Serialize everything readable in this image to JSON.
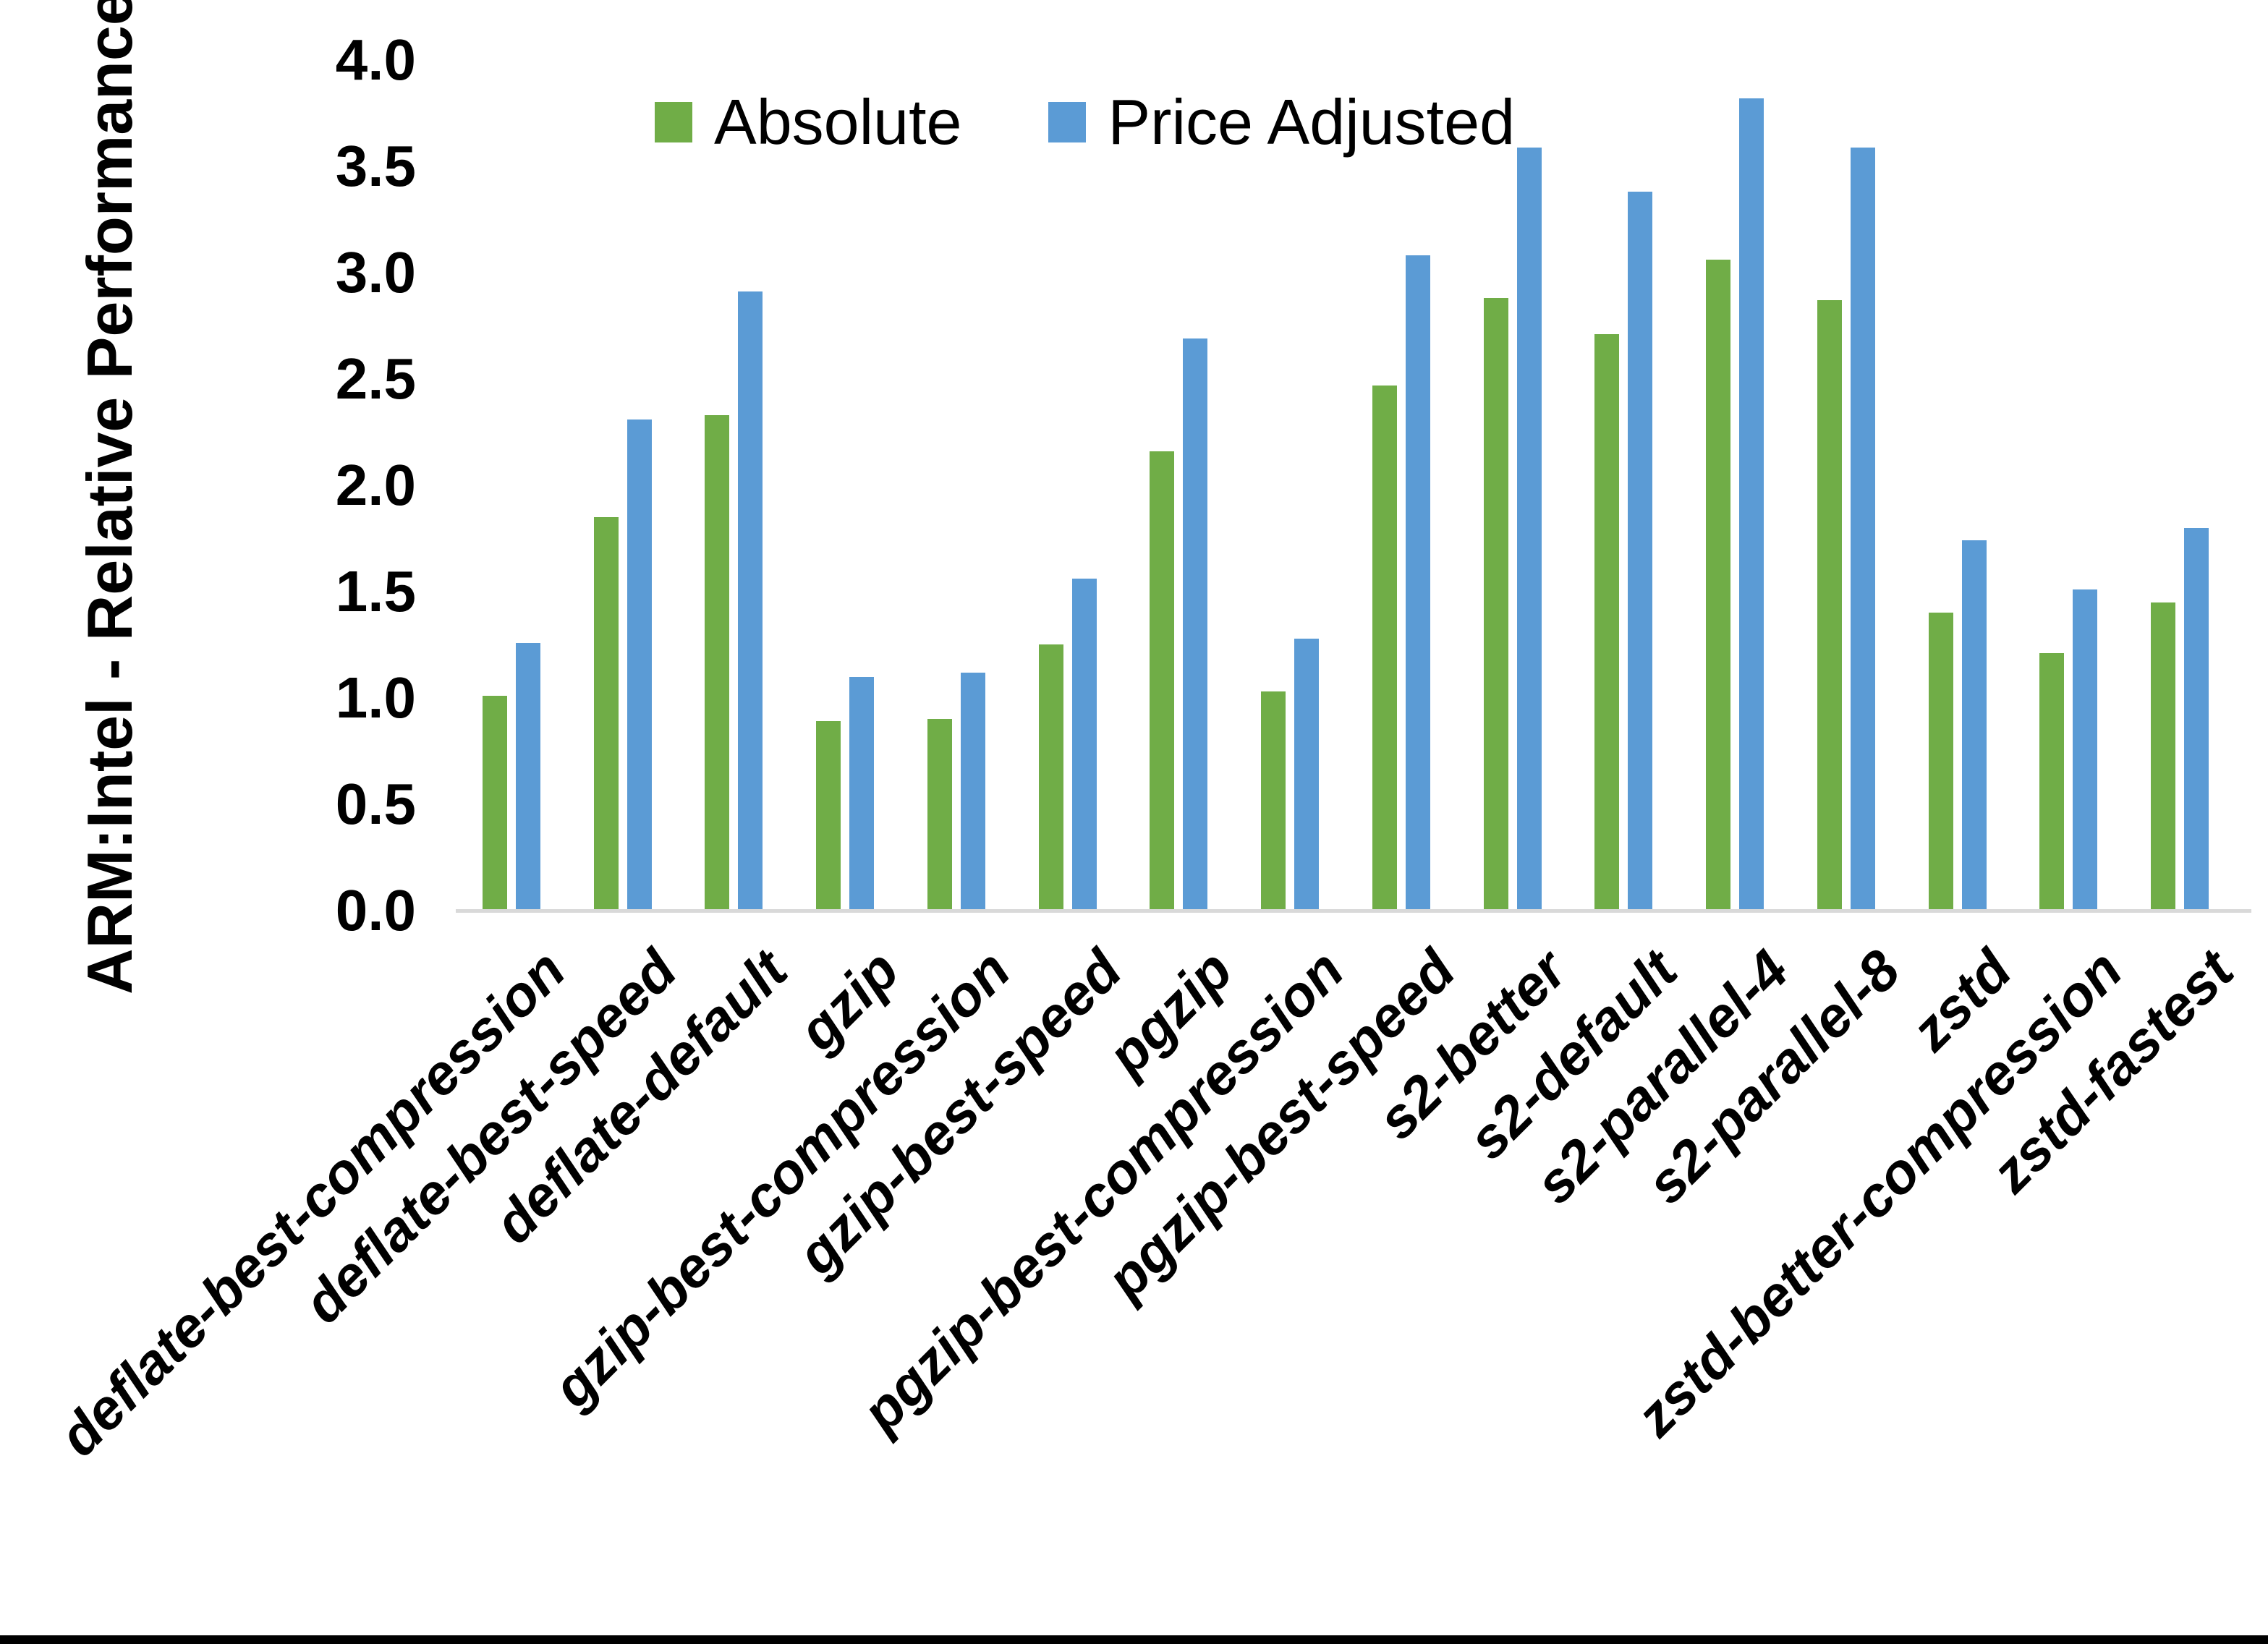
{
  "figure": {
    "background": "#FFFFFF",
    "bottom_border_color": "#000000",
    "axis_line_color": "#D9D9D9",
    "text_color": "#000000"
  },
  "chart_data": {
    "type": "bar",
    "title": "",
    "xlabel": "",
    "ylabel": "ARM:Intel - Relative Performance",
    "ylim": [
      0.0,
      4.0
    ],
    "ytick_step": 0.5,
    "yticks": [
      "0.0",
      "0.5",
      "1.0",
      "1.5",
      "2.0",
      "2.5",
      "3.0",
      "3.5",
      "4.0"
    ],
    "grid": false,
    "legend_position": "top",
    "categories": [
      "deflate-best-compression",
      "deflate-best-speed",
      "deflate-default",
      "gzip",
      "gzip-best-compression",
      "gzip-best-speed",
      "pgzip",
      "pgzip-best-compression",
      "pgzip-best-speed",
      "s2-better",
      "s2-default",
      "s2-parallel-4",
      "s2-parallel-8",
      "zstd",
      "zstd-better-compression",
      "zstd-fastest"
    ],
    "series": [
      {
        "name": "Absolute",
        "color": "#70AD47",
        "values": [
          1.01,
          1.85,
          2.33,
          0.89,
          0.9,
          1.25,
          2.16,
          1.03,
          2.47,
          2.88,
          2.71,
          3.06,
          2.87,
          1.4,
          1.21,
          1.45
        ]
      },
      {
        "name": "Price Adjusted",
        "color": "#5B9BD5",
        "values": [
          1.26,
          2.31,
          2.91,
          1.1,
          1.12,
          1.56,
          2.69,
          1.28,
          3.08,
          3.59,
          3.38,
          3.82,
          3.59,
          1.74,
          1.51,
          1.8
        ]
      }
    ]
  }
}
